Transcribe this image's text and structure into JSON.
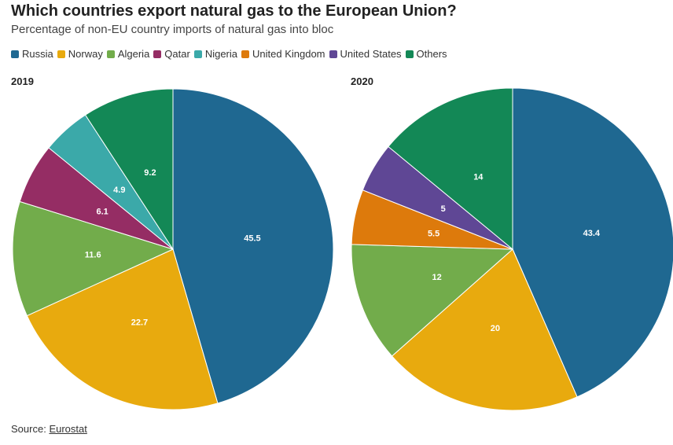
{
  "title": "Which countries export natural gas to the European Union?",
  "subtitle": "Percentage of non-EU country imports of natural gas into bloc",
  "source": {
    "label": "Source:",
    "link_text": "Eurostat"
  },
  "legend": [
    {
      "name": "Russia",
      "color": "#1f6891"
    },
    {
      "name": "Norway",
      "color": "#e8aa0e"
    },
    {
      "name": "Algeria",
      "color": "#72ac4b"
    },
    {
      "name": "Qatar",
      "color": "#952d64"
    },
    {
      "name": "Nigeria",
      "color": "#3ba9a9"
    },
    {
      "name": "United Kingdom",
      "color": "#dd7a0c"
    },
    {
      "name": "United States",
      "color": "#5f4795"
    },
    {
      "name": "Others",
      "color": "#138856"
    }
  ],
  "chart_data": [
    {
      "type": "pie",
      "title": "2019",
      "slices": [
        {
          "name": "Russia",
          "value": 45.5
        },
        {
          "name": "Norway",
          "value": 22.7
        },
        {
          "name": "Algeria",
          "value": 11.6
        },
        {
          "name": "Qatar",
          "value": 6.1
        },
        {
          "name": "Nigeria",
          "value": 4.9
        },
        {
          "name": "Others",
          "value": 9.2
        }
      ]
    },
    {
      "type": "pie",
      "title": "2020",
      "slices": [
        {
          "name": "Russia",
          "value": 43.4
        },
        {
          "name": "Norway",
          "value": 20
        },
        {
          "name": "Algeria",
          "value": 12
        },
        {
          "name": "United Kingdom",
          "value": 5.5
        },
        {
          "name": "United States",
          "value": 5
        },
        {
          "name": "Others",
          "value": 14
        }
      ]
    }
  ]
}
